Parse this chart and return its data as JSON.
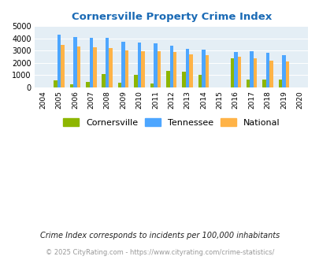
{
  "title": "Cornersville Property Crime Index",
  "all_years": [
    2004,
    2005,
    2006,
    2007,
    2008,
    2009,
    2010,
    2011,
    2012,
    2013,
    2014,
    2015,
    2016,
    2017,
    2018,
    2019,
    2020
  ],
  "data_years": [
    2005,
    2006,
    2007,
    2008,
    2009,
    2010,
    2011,
    2012,
    2013,
    2014,
    2016,
    2017,
    2018,
    2019
  ],
  "cornersville": [
    550,
    220,
    460,
    1070,
    350,
    1020,
    280,
    1340,
    1280,
    1020,
    2350,
    650,
    650,
    650
  ],
  "tennessee": [
    4300,
    4100,
    4080,
    4040,
    3760,
    3650,
    3580,
    3380,
    3180,
    3060,
    2880,
    2930,
    2840,
    2630
  ],
  "national": [
    3450,
    3340,
    3250,
    3220,
    3050,
    2960,
    2950,
    2890,
    2720,
    2600,
    2470,
    2360,
    2200,
    2130
  ],
  "bar_colors": {
    "cornersville": "#8db600",
    "tennessee": "#4da6ff",
    "national": "#ffb347"
  },
  "ylim": [
    0,
    5000
  ],
  "yticks": [
    0,
    1000,
    2000,
    3000,
    4000,
    5000
  ],
  "bg_color": "#e4eef5",
  "title_color": "#1a6ab5",
  "legend_labels": [
    "Cornersville",
    "Tennessee",
    "National"
  ],
  "footnote1": "Crime Index corresponds to incidents per 100,000 inhabitants",
  "footnote2": "© 2025 CityRating.com - https://www.cityrating.com/crime-statistics/",
  "bar_width": 0.22
}
